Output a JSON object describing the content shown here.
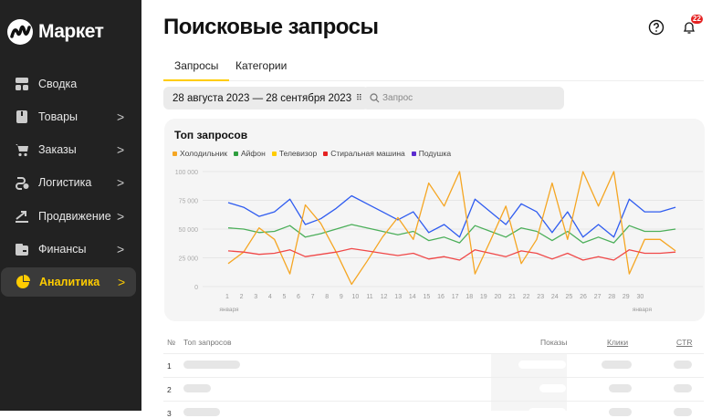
{
  "sidebar": {
    "logo": "Маркет",
    "items": [
      {
        "label": "Сводка",
        "icon": "dashboard-icon",
        "chevron": false
      },
      {
        "label": "Товары",
        "icon": "box-icon",
        "chevron": true
      },
      {
        "label": "Заказы",
        "icon": "cart-icon",
        "chevron": true
      },
      {
        "label": "Логистика",
        "icon": "route-icon",
        "chevron": true
      },
      {
        "label": "Продвижение",
        "icon": "trend-up-icon",
        "chevron": true
      },
      {
        "label": "Финансы",
        "icon": "wallet-icon",
        "chevron": true
      },
      {
        "label": "Аналитика",
        "icon": "pie-chart-icon",
        "chevron": true,
        "active": true
      }
    ]
  },
  "header": {
    "title": "Поисковые запросы",
    "help_icon": "question-icon",
    "bell_icon": "bell-icon",
    "notifications": "22"
  },
  "tabs": [
    {
      "label": "Запросы",
      "active": true
    },
    {
      "label": "Категории"
    }
  ],
  "filters": {
    "date_range": "28 августа 2023 — 28 сентября 2023",
    "search_placeholder": "Запрос"
  },
  "colors": {
    "accent": "#ffcc00",
    "sidebar": "#222222"
  },
  "chart_data": {
    "type": "line",
    "title": "Топ запросов",
    "legend": [
      {
        "name": "Холодильник",
        "color": "#f5a623"
      },
      {
        "name": "Айфон",
        "color": "#2e9e3e"
      },
      {
        "name": "Телевизор",
        "color": "#ffcc00"
      },
      {
        "name": "Стиральная машина",
        "color": "#e52222"
      },
      {
        "name": "Подушка",
        "color": "#5b2ccf"
      }
    ],
    "x_ticks": [
      "1",
      "2",
      "3",
      "4",
      "5",
      "6",
      "7",
      "8",
      "9",
      "10",
      "11",
      "12",
      "13",
      "14",
      "15",
      "16",
      "17",
      "18",
      "19",
      "20",
      "21",
      "22",
      "23",
      "24",
      "25",
      "26",
      "27",
      "28",
      "29",
      "30"
    ],
    "x_tick_sublabels": {
      "1": "января",
      "30": "января"
    },
    "y_ticks": [
      "0",
      "25 000",
      "50 000",
      "75 000",
      "100 000"
    ],
    "ylim": [
      0,
      100000
    ],
    "grid": true,
    "legend_position": "top-left",
    "series": [
      {
        "color": "#2f5cf0",
        "values": [
          73000,
          69000,
          61000,
          65000,
          76000,
          54000,
          59000,
          68000,
          79000,
          72000,
          65000,
          58000,
          65000,
          47000,
          54000,
          43000,
          76000,
          65000,
          54000,
          72000,
          65000,
          47000,
          65000,
          43000,
          54000,
          43000,
          76000,
          65000,
          65000,
          69000
        ]
      },
      {
        "name": "Айфон",
        "color": "#4caf5a",
        "values": [
          51000,
          50000,
          47000,
          48000,
          53000,
          43000,
          46000,
          50000,
          54000,
          51000,
          48000,
          45000,
          48000,
          40000,
          43000,
          38000,
          53000,
          48000,
          43000,
          51000,
          48000,
          40000,
          48000,
          38000,
          43000,
          38000,
          53000,
          48000,
          48000,
          50000
        ]
      },
      {
        "name": "Холодильник",
        "color": "#f5a623",
        "values": [
          20000,
          30000,
          51000,
          41000,
          11000,
          71000,
          55000,
          30000,
          2000,
          22000,
          43000,
          60000,
          41000,
          90000,
          70000,
          100000,
          11000,
          40000,
          70000,
          20000,
          41000,
          90000,
          41000,
          100000,
          70000,
          100000,
          11000,
          41000,
          41000,
          31000
        ]
      },
      {
        "name": "Стиральная машина",
        "color": "#f04848",
        "values": [
          31000,
          30000,
          28000,
          29000,
          32000,
          26000,
          28000,
          30000,
          33000,
          31000,
          29000,
          27000,
          29000,
          24000,
          26000,
          23000,
          32000,
          29000,
          26000,
          31000,
          29000,
          24000,
          29000,
          23000,
          26000,
          23000,
          32000,
          29000,
          29000,
          30000
        ]
      }
    ]
  },
  "table": {
    "headers": {
      "num": "№",
      "query": "Топ запросов",
      "shows": "Показы",
      "clicks": "Клики",
      "ctr": "CTR"
    },
    "rows": [
      "1",
      "2",
      "3"
    ]
  }
}
